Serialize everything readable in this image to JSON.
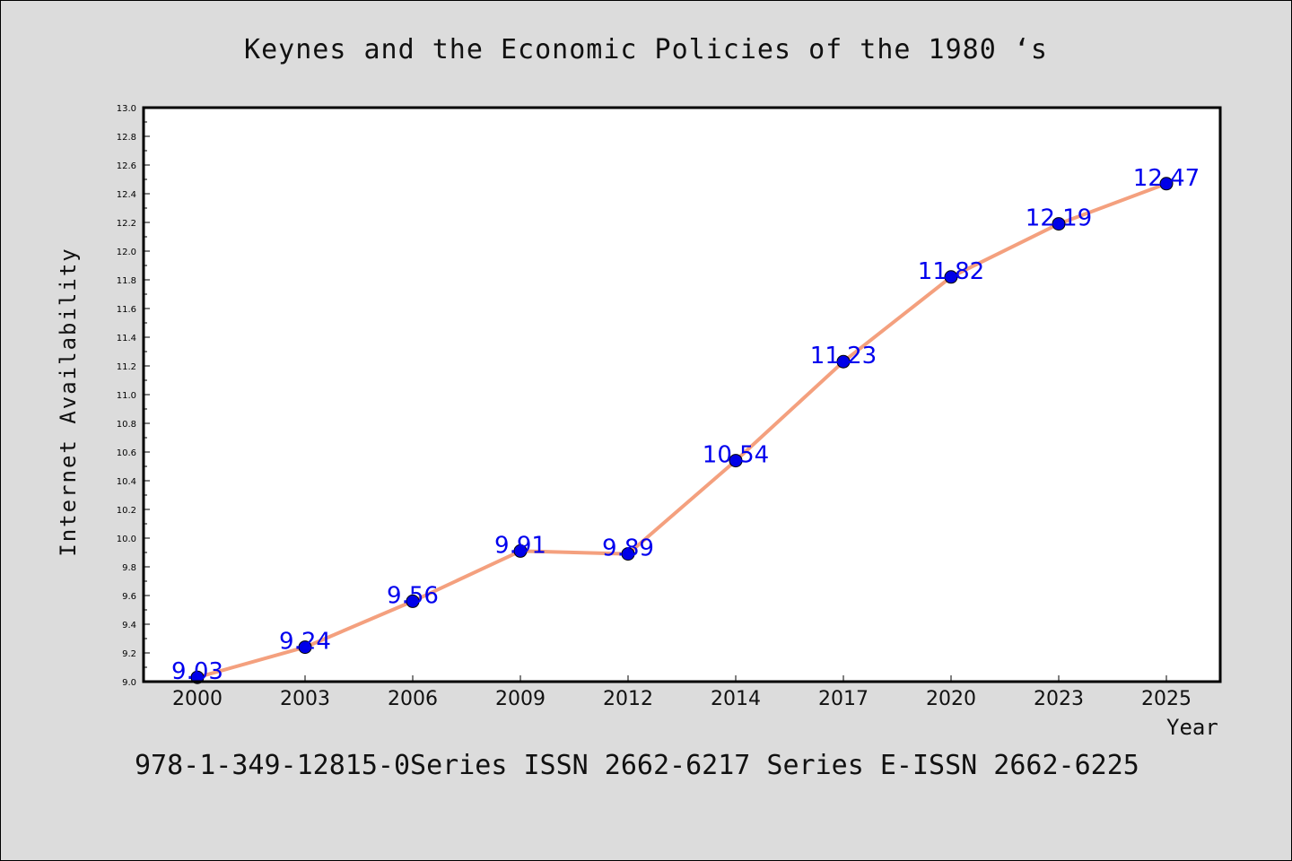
{
  "chart_data": {
    "type": "line",
    "title": "Keynes and the Economic Policies of the 1980 ‘s",
    "xlabel": "Year",
    "ylabel": "Internet Availability",
    "categories": [
      "2000",
      "2003",
      "2006",
      "2009",
      "2012",
      "2014",
      "2017",
      "2020",
      "2023",
      "2025"
    ],
    "values": [
      9.03,
      9.24,
      9.56,
      9.91,
      9.89,
      10.54,
      11.23,
      11.82,
      12.19,
      12.47
    ],
    "data_labels": [
      "9.03",
      "9.24",
      "9.56",
      "9.91",
      "9.89",
      "10.54",
      "11.23",
      "11.82",
      "12.19",
      "12.47"
    ],
    "ylim": [
      9.0,
      13.0
    ],
    "yticks": [
      "9.0",
      "9.2",
      "9.4",
      "9.6",
      "9.8",
      "10.0",
      "10.2",
      "10.4",
      "10.6",
      "10.8",
      "11.0",
      "11.2",
      "11.4",
      "11.6",
      "11.8",
      "12.0",
      "12.2",
      "12.4",
      "12.6",
      "12.8",
      "13.0"
    ],
    "grid": false,
    "colors": {
      "line": "#f4a07e",
      "marker": "#0000e6",
      "data_label": "#0000ee",
      "plot_background": "#ffffff",
      "page_background": "#dcdcdc"
    }
  },
  "footer": "978-1-349-12815-0Series ISSN 2662-6217 Series E-ISSN 2662-6225"
}
